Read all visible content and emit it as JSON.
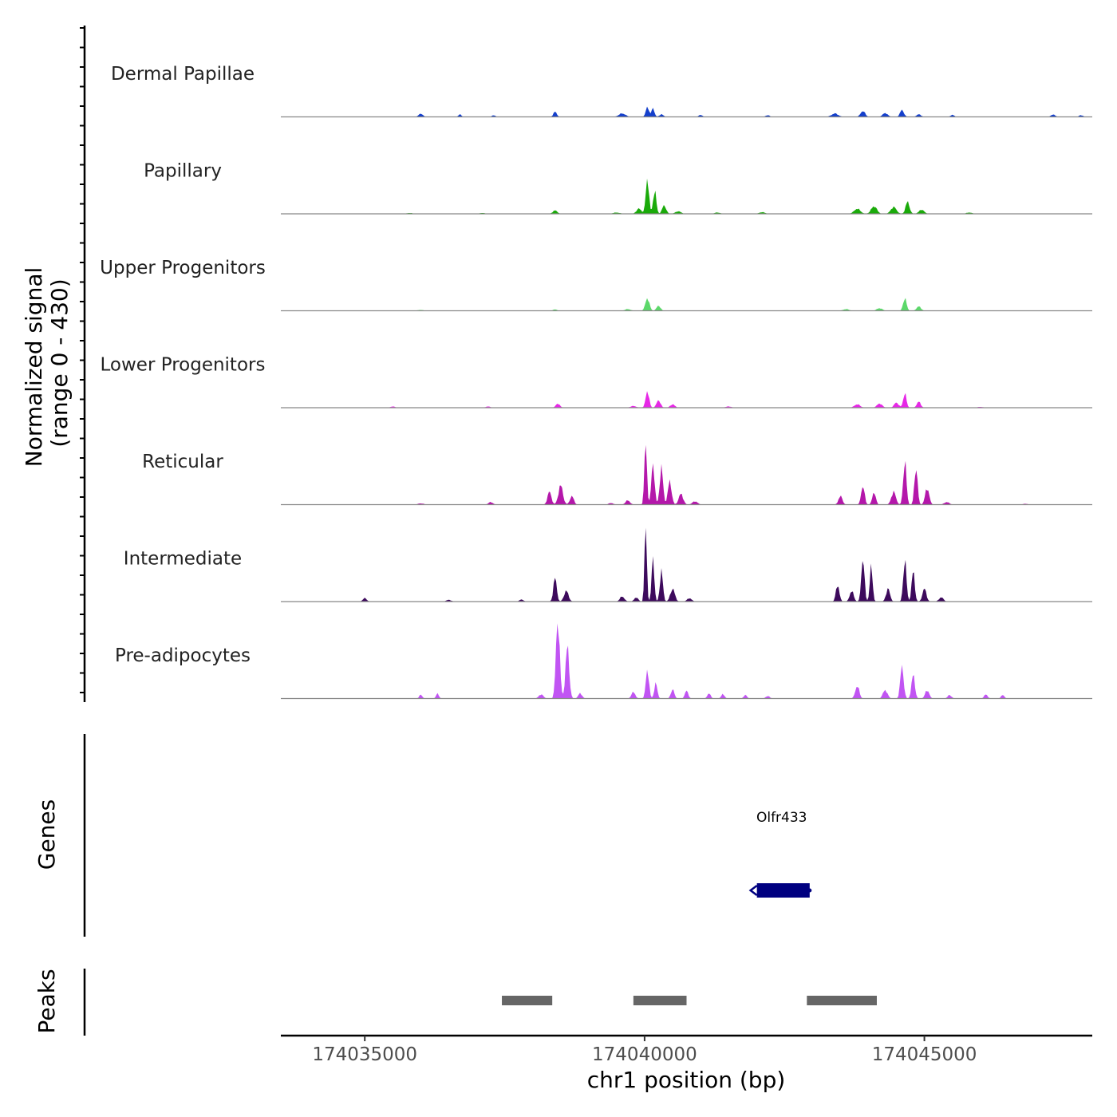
{
  "chart_data": {
    "type": "area",
    "title": "",
    "ylabel": "Normalized signal",
    "ylabel_range": "(range 0 - 430)",
    "xlabel": "chr1 position (bp)",
    "xlim": [
      174033500,
      174048000
    ],
    "ylim": [
      0,
      430
    ],
    "x_ticks": [
      174035000,
      174040000,
      174045000
    ],
    "x_tick_labels": [
      "174035000",
      "174040000",
      "174045000"
    ],
    "tracks": [
      {
        "name": "Dermal Papillae",
        "color": "#1540cc",
        "peaks": [
          {
            "center": 174036000,
            "height": 8,
            "width": 70
          },
          {
            "center": 174036700,
            "height": 6,
            "width": 50
          },
          {
            "center": 174037300,
            "height": 4,
            "width": 60
          },
          {
            "center": 174038400,
            "height": 12,
            "width": 60
          },
          {
            "center": 174039600,
            "height": 8,
            "width": 120
          },
          {
            "center": 174040050,
            "height": 25,
            "width": 55
          },
          {
            "center": 174040150,
            "height": 22,
            "width": 50
          },
          {
            "center": 174040300,
            "height": 6,
            "width": 70
          },
          {
            "center": 174041000,
            "height": 5,
            "width": 60
          },
          {
            "center": 174042200,
            "height": 4,
            "width": 70
          },
          {
            "center": 174043400,
            "height": 8,
            "width": 120
          },
          {
            "center": 174043900,
            "height": 14,
            "width": 80
          },
          {
            "center": 174044300,
            "height": 9,
            "width": 90
          },
          {
            "center": 174044600,
            "height": 16,
            "width": 70
          },
          {
            "center": 174044900,
            "height": 6,
            "width": 80
          },
          {
            "center": 174045500,
            "height": 5,
            "width": 60
          },
          {
            "center": 174047300,
            "height": 6,
            "width": 70
          },
          {
            "center": 174047800,
            "height": 4,
            "width": 70
          }
        ]
      },
      {
        "name": "Papillary",
        "color": "#1aaa0a",
        "peaks": [
          {
            "center": 174035800,
            "height": 2,
            "width": 100
          },
          {
            "center": 174037100,
            "height": 2,
            "width": 100
          },
          {
            "center": 174038400,
            "height": 8,
            "width": 80
          },
          {
            "center": 174039500,
            "height": 3,
            "width": 120
          },
          {
            "center": 174039900,
            "height": 12,
            "width": 90
          },
          {
            "center": 174040050,
            "height": 85,
            "width": 55
          },
          {
            "center": 174040180,
            "height": 55,
            "width": 55
          },
          {
            "center": 174040350,
            "height": 20,
            "width": 70
          },
          {
            "center": 174040600,
            "height": 6,
            "width": 100
          },
          {
            "center": 174041300,
            "height": 3,
            "width": 100
          },
          {
            "center": 174042100,
            "height": 4,
            "width": 100
          },
          {
            "center": 174043800,
            "height": 12,
            "width": 110
          },
          {
            "center": 174044100,
            "height": 18,
            "width": 100
          },
          {
            "center": 174044450,
            "height": 16,
            "width": 100
          },
          {
            "center": 174044700,
            "height": 28,
            "width": 70
          },
          {
            "center": 174044950,
            "height": 10,
            "width": 90
          },
          {
            "center": 174045800,
            "height": 3,
            "width": 100
          }
        ]
      },
      {
        "name": "Upper Progenitors",
        "color": "#5cd86a",
        "peaks": [
          {
            "center": 174036000,
            "height": 2,
            "width": 100
          },
          {
            "center": 174038400,
            "height": 3,
            "width": 80
          },
          {
            "center": 174039700,
            "height": 4,
            "width": 100
          },
          {
            "center": 174040050,
            "height": 30,
            "width": 70
          },
          {
            "center": 174040250,
            "height": 12,
            "width": 70
          },
          {
            "center": 174043600,
            "height": 4,
            "width": 100
          },
          {
            "center": 174044200,
            "height": 6,
            "width": 100
          },
          {
            "center": 174044650,
            "height": 30,
            "width": 60
          },
          {
            "center": 174044900,
            "height": 10,
            "width": 80
          }
        ]
      },
      {
        "name": "Lower Progenitors",
        "color": "#e628e6",
        "peaks": [
          {
            "center": 174035500,
            "height": 3,
            "width": 80
          },
          {
            "center": 174037200,
            "height": 3,
            "width": 80
          },
          {
            "center": 174038450,
            "height": 10,
            "width": 70
          },
          {
            "center": 174039800,
            "height": 4,
            "width": 100
          },
          {
            "center": 174040050,
            "height": 40,
            "width": 60
          },
          {
            "center": 174040250,
            "height": 18,
            "width": 70
          },
          {
            "center": 174040500,
            "height": 8,
            "width": 80
          },
          {
            "center": 174041500,
            "height": 3,
            "width": 100
          },
          {
            "center": 174043800,
            "height": 8,
            "width": 100
          },
          {
            "center": 174044200,
            "height": 10,
            "width": 90
          },
          {
            "center": 174044500,
            "height": 12,
            "width": 80
          },
          {
            "center": 174044650,
            "height": 35,
            "width": 55
          },
          {
            "center": 174044900,
            "height": 14,
            "width": 70
          },
          {
            "center": 174046000,
            "height": 2,
            "width": 100
          }
        ]
      },
      {
        "name": "Reticular",
        "color": "#b417aa",
        "peaks": [
          {
            "center": 174036000,
            "height": 3,
            "width": 100
          },
          {
            "center": 174037250,
            "height": 6,
            "width": 80
          },
          {
            "center": 174038300,
            "height": 30,
            "width": 70
          },
          {
            "center": 174038500,
            "height": 45,
            "width": 80
          },
          {
            "center": 174038700,
            "height": 20,
            "width": 70
          },
          {
            "center": 174039400,
            "height": 4,
            "width": 80
          },
          {
            "center": 174039700,
            "height": 10,
            "width": 80
          },
          {
            "center": 174040020,
            "height": 145,
            "width": 45
          },
          {
            "center": 174040150,
            "height": 100,
            "width": 55
          },
          {
            "center": 174040300,
            "height": 85,
            "width": 60
          },
          {
            "center": 174040450,
            "height": 55,
            "width": 65
          },
          {
            "center": 174040650,
            "height": 25,
            "width": 80
          },
          {
            "center": 174040900,
            "height": 8,
            "width": 90
          },
          {
            "center": 174043500,
            "height": 20,
            "width": 70
          },
          {
            "center": 174043900,
            "height": 45,
            "width": 60
          },
          {
            "center": 174044100,
            "height": 30,
            "width": 60
          },
          {
            "center": 174044450,
            "height": 30,
            "width": 80
          },
          {
            "center": 174044650,
            "height": 105,
            "width": 55
          },
          {
            "center": 174044850,
            "height": 90,
            "width": 55
          },
          {
            "center": 174045050,
            "height": 40,
            "width": 70
          },
          {
            "center": 174045400,
            "height": 6,
            "width": 90
          },
          {
            "center": 174046800,
            "height": 2,
            "width": 90
          }
        ]
      },
      {
        "name": "Intermediate",
        "color": "#3d0a5c",
        "peaks": [
          {
            "center": 174035000,
            "height": 8,
            "width": 70
          },
          {
            "center": 174036500,
            "height": 4,
            "width": 90
          },
          {
            "center": 174037800,
            "height": 5,
            "width": 70
          },
          {
            "center": 174038400,
            "height": 55,
            "width": 60
          },
          {
            "center": 174038600,
            "height": 25,
            "width": 80
          },
          {
            "center": 174039600,
            "height": 12,
            "width": 80
          },
          {
            "center": 174039850,
            "height": 10,
            "width": 70
          },
          {
            "center": 174040020,
            "height": 180,
            "width": 40
          },
          {
            "center": 174040150,
            "height": 110,
            "width": 45
          },
          {
            "center": 174040300,
            "height": 70,
            "width": 55
          },
          {
            "center": 174040500,
            "height": 30,
            "width": 80
          },
          {
            "center": 174040800,
            "height": 8,
            "width": 80
          },
          {
            "center": 174043450,
            "height": 40,
            "width": 60
          },
          {
            "center": 174043700,
            "height": 25,
            "width": 70
          },
          {
            "center": 174043900,
            "height": 105,
            "width": 55
          },
          {
            "center": 174044050,
            "height": 80,
            "width": 50
          },
          {
            "center": 174044350,
            "height": 30,
            "width": 70
          },
          {
            "center": 174044650,
            "height": 100,
            "width": 55
          },
          {
            "center": 174044800,
            "height": 70,
            "width": 55
          },
          {
            "center": 174045000,
            "height": 30,
            "width": 70
          },
          {
            "center": 174045300,
            "height": 10,
            "width": 80
          }
        ]
      },
      {
        "name": "Pre-adipocytes",
        "color": "#c154f3",
        "peaks": [
          {
            "center": 174036000,
            "height": 10,
            "width": 50
          },
          {
            "center": 174036300,
            "height": 12,
            "width": 50
          },
          {
            "center": 174038150,
            "height": 10,
            "width": 80
          },
          {
            "center": 174038450,
            "height": 190,
            "width": 65
          },
          {
            "center": 174038620,
            "height": 120,
            "width": 65
          },
          {
            "center": 174038850,
            "height": 12,
            "width": 70
          },
          {
            "center": 174039800,
            "height": 15,
            "width": 70
          },
          {
            "center": 174040050,
            "height": 70,
            "width": 55
          },
          {
            "center": 174040200,
            "height": 35,
            "width": 55
          },
          {
            "center": 174040500,
            "height": 22,
            "width": 60
          },
          {
            "center": 174040750,
            "height": 18,
            "width": 60
          },
          {
            "center": 174041150,
            "height": 12,
            "width": 60
          },
          {
            "center": 174041400,
            "height": 10,
            "width": 60
          },
          {
            "center": 174041800,
            "height": 8,
            "width": 60
          },
          {
            "center": 174042200,
            "height": 6,
            "width": 70
          },
          {
            "center": 174043800,
            "height": 30,
            "width": 70
          },
          {
            "center": 174044300,
            "height": 20,
            "width": 80
          },
          {
            "center": 174044600,
            "height": 75,
            "width": 60
          },
          {
            "center": 174044800,
            "height": 55,
            "width": 60
          },
          {
            "center": 174045050,
            "height": 20,
            "width": 70
          },
          {
            "center": 174045450,
            "height": 8,
            "width": 70
          },
          {
            "center": 174046100,
            "height": 10,
            "width": 60
          },
          {
            "center": 174046400,
            "height": 8,
            "width": 60
          }
        ]
      }
    ],
    "genes": {
      "title": "Genes",
      "items": [
        {
          "name": "Olfr433",
          "start": 174041950,
          "end": 174042950,
          "strand": "-",
          "color": "#000080"
        }
      ]
    },
    "peaks_track": {
      "title": "Peaks",
      "color": "#666666",
      "regions": [
        {
          "start": 174037450,
          "end": 174038350
        },
        {
          "start": 174039800,
          "end": 174040750
        },
        {
          "start": 174042900,
          "end": 174044150
        }
      ]
    }
  }
}
